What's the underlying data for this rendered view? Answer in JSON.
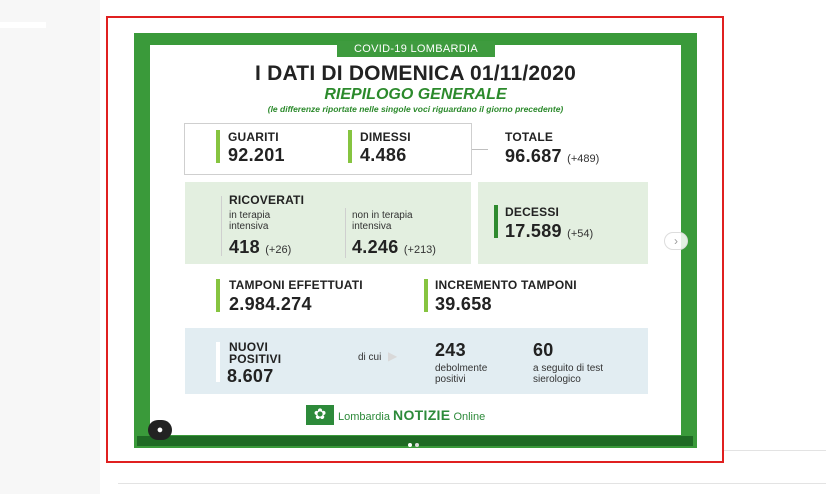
{
  "post": {
    "banner": "COVID-19 LOMBARDIA",
    "title": "I DATI DI DOMENICA 01/11/2020",
    "subtitle": "RIEPILOGO GENERALE",
    "note": "(le differenze riportate nelle singole voci riguardano il giorno precedente)"
  },
  "guariti": {
    "label": "GUARITI",
    "value": "92.201"
  },
  "dimessi": {
    "label": "DIMESSI",
    "value": "4.486"
  },
  "totale": {
    "label": "TOTALE",
    "value": "96.687",
    "delta": "(+489)"
  },
  "ricoverati": {
    "label": "RICOVERATI",
    "terapia_intensiva": {
      "label": "in terapia intensiva",
      "value": "418",
      "delta": "(+26)"
    },
    "non_terapia_intensiva": {
      "label": "non in terapia intensiva",
      "value": "4.246",
      "delta": "(+213)"
    }
  },
  "decessi": {
    "label": "DECESSI",
    "value": "17.589",
    "delta": "(+54)"
  },
  "tamponi": {
    "label": "TAMPONI EFFETTUATI",
    "value": "2.984.274"
  },
  "incremento": {
    "label": "INCREMENTO TAMPONI",
    "value": "39.658"
  },
  "nuovi_positivi": {
    "label_line1": "NUOVI",
    "label_line2": "POSITIVI",
    "value": "8.607",
    "di_cui": "di cui",
    "debolmente": {
      "value": "243",
      "label_line1": "debolmente",
      "label_line2": "positivi"
    },
    "sierologico": {
      "value": "60",
      "label_line1": "a seguito di test",
      "label_line2": "sierologico"
    }
  },
  "footer": {
    "brand": "Lombardia",
    "brand_bold": "NOTIZIE",
    "brand_suffix": "Online"
  },
  "icons": {
    "next": "chevron-right-icon",
    "user": "user-tag-icon",
    "logo": "lombardia-rose-icon"
  },
  "colors": {
    "brand_green": "#3a9a3a",
    "accent_bar": "#86c440",
    "highlight_border": "#e02020"
  }
}
